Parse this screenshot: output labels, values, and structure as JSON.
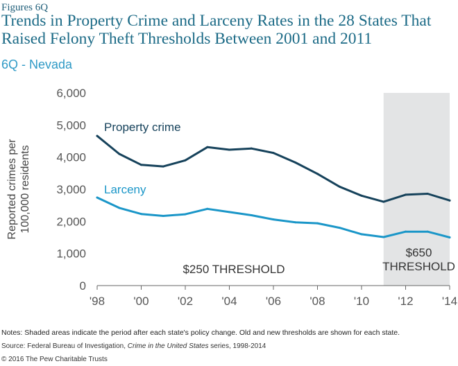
{
  "figure_label": "Figures 6Q",
  "title": "Trends in Property Crime and Larceny Rates in the 28 States That Raised Felony Theft Thresholds Between 2001 and 2011",
  "subtitle": "6Q - Nevada",
  "notes": "Notes: Shaded areas indicate the period after each state's policy change. Old and new thresholds are shown for each state.",
  "source_prefix": "Source: Federal Bureau of Investigation, ",
  "source_title": "Crime in the United States",
  "source_suffix": " series, 1998-2014",
  "copyright": "© 2016 The Pew Charitable Trusts",
  "colors": {
    "property": "#16425b",
    "larceny": "#1a96c8",
    "shade": "#e3e4e5",
    "axis": "#666666"
  },
  "chart_data": {
    "type": "line",
    "x": [
      1998,
      1999,
      2000,
      2001,
      2002,
      2003,
      2004,
      2005,
      2006,
      2007,
      2008,
      2009,
      2010,
      2011,
      2012,
      2013,
      2014
    ],
    "x_tick_labels": [
      "'98",
      "'00",
      "'02",
      "'04",
      "'06",
      "'08",
      "'10",
      "'12",
      "'14"
    ],
    "x_tick_values": [
      1998,
      2000,
      2002,
      2004,
      2006,
      2008,
      2010,
      2012,
      2014
    ],
    "xlim": [
      1998,
      2014
    ],
    "ylim": [
      0,
      6000
    ],
    "y_ticks": [
      0,
      1000,
      2000,
      3000,
      4000,
      5000,
      6000
    ],
    "y_tick_labels": [
      "0",
      "1,000",
      "2,000",
      "3,000",
      "4,000",
      "5,000",
      "6,000"
    ],
    "ylabel_line1": "Reported crimes per",
    "ylabel_line2": "100,000 residents",
    "series": [
      {
        "name": "Property crime",
        "values": [
          4660,
          4100,
          3760,
          3710,
          3900,
          4310,
          4230,
          4270,
          4130,
          3830,
          3480,
          3080,
          2800,
          2610,
          2830,
          2860,
          2650
        ]
      },
      {
        "name": "Larceny",
        "values": [
          2740,
          2420,
          2230,
          2170,
          2220,
          2390,
          2290,
          2190,
          2060,
          1970,
          1940,
          1800,
          1600,
          1510,
          1680,
          1680,
          1500
        ]
      }
    ],
    "shaded_region": {
      "from": 2011,
      "to": 2014
    },
    "annotations": [
      {
        "text": "$250 THRESHOLD"
      },
      {
        "text_line1": "$650",
        "text_line2": "THRESHOLD"
      }
    ]
  }
}
